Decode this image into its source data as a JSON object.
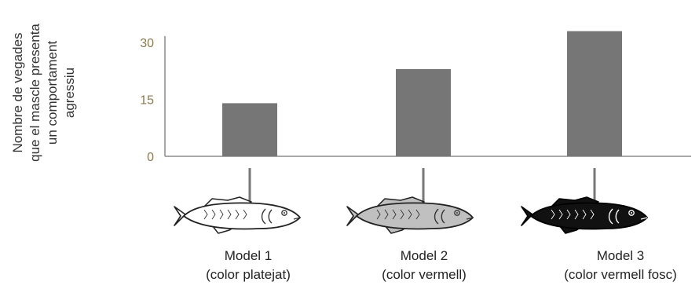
{
  "chart_data": {
    "type": "bar",
    "title": "",
    "xlabel": "",
    "ylabel": [
      "Nombre de vegades",
      "que el mascle presenta",
      "un comportament",
      "agressiu"
    ],
    "ylim": [
      0,
      35
    ],
    "yticks": [
      {
        "value": 0,
        "label": "0"
      },
      {
        "value": 15,
        "label": "15"
      },
      {
        "value": 30,
        "label": "30"
      }
    ],
    "categories": [
      {
        "line1": "Model 1",
        "line2": "(color platejat)",
        "fish_color": "#ffffff"
      },
      {
        "line1": "Model 2",
        "line2": "(color vermell)",
        "fish_color": "#c0c0c0"
      },
      {
        "line1": "Model 3",
        "line2": "(color vermell fosc)",
        "fish_color": "#111111"
      }
    ],
    "values": [
      14,
      23,
      33
    ],
    "bar_color": "#767676",
    "axis_color": "#8c8c8c",
    "grid": false
  }
}
